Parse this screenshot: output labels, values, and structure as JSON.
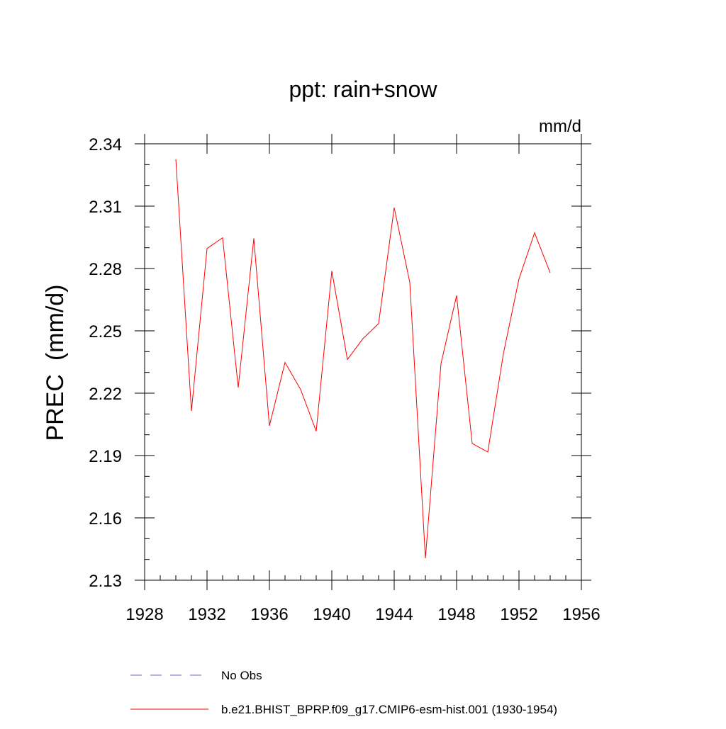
{
  "chart_data": {
    "type": "line",
    "title": "ppt: rain+snow",
    "units_label": "mm/d",
    "ylabel": "PREC  (mm/d)",
    "xlabel": "",
    "xlim": [
      1928,
      1956
    ],
    "ylim": [
      2.13,
      2.34
    ],
    "x_ticks": [
      1928,
      1932,
      1936,
      1940,
      1944,
      1948,
      1952,
      1956
    ],
    "x_tick_labels": [
      "1928",
      "1932",
      "1936",
      "1940",
      "1944",
      "1948",
      "1952",
      "1956"
    ],
    "y_ticks": [
      2.13,
      2.16,
      2.19,
      2.22,
      2.25,
      2.28,
      2.31,
      2.34
    ],
    "y_tick_labels": [
      "2.13",
      "2.16",
      "2.19",
      "2.22",
      "2.25",
      "2.28",
      "2.31",
      "2.34"
    ],
    "grid": false,
    "series": [
      {
        "name": "b.e21.BHIST_BPRP.f09_g17.CMIP6-esm-hist.001 (1930-1954)",
        "color": "#ff0000",
        "style": "solid",
        "x": [
          1930,
          1931,
          1932,
          1933,
          1934,
          1935,
          1936,
          1937,
          1938,
          1939,
          1940,
          1941,
          1942,
          1943,
          1944,
          1945,
          1946,
          1947,
          1948,
          1949,
          1950,
          1951,
          1952,
          1953,
          1954
        ],
        "values": [
          2.3326,
          2.2114,
          2.2896,
          2.2948,
          2.2227,
          2.2945,
          2.2043,
          2.2348,
          2.2218,
          2.2017,
          2.2788,
          2.2362,
          2.2463,
          2.2535,
          2.3093,
          2.2733,
          2.1406,
          2.2342,
          2.267,
          2.1958,
          2.1917,
          2.239,
          2.275,
          2.2972,
          2.2779
        ]
      }
    ],
    "legend": [
      {
        "label": "No Obs",
        "color": "#6666cc",
        "style": "dashed"
      },
      {
        "label": "b.e21.BHIST_BPRP.f09_g17.CMIP6-esm-hist.001 (1930-1954)",
        "color": "#ff0000",
        "style": "solid"
      }
    ],
    "legend_position": "bottom-left"
  }
}
